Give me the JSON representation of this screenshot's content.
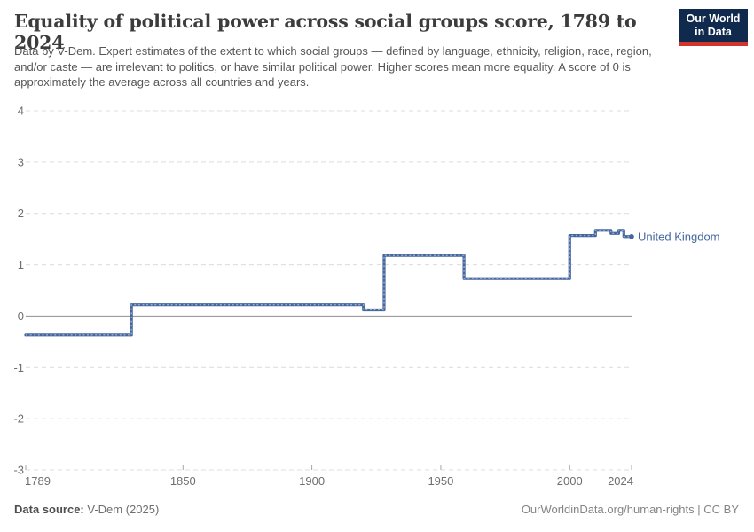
{
  "header": {
    "title": "Equality of political power across social groups score, 1789 to 2024",
    "subtitle": "Data by V-Dem. Expert estimates of the extent to which social groups — defined by language, ethnicity, religion, race, region, and/or caste — are irrelevant to politics, or have similar political power. Higher scores mean more equality. A score of 0 is approximately the average across all countries and years.",
    "logo": {
      "line1": "Our World",
      "line2": "in Data",
      "bg_color": "#102A4E",
      "accent_color": "#D0342C"
    }
  },
  "footer": {
    "source_label": "Data source:",
    "source_value": " V-Dem (2025)",
    "link": "OurWorldinData.org/human-rights",
    "separator": " | ",
    "license": "CC BY"
  },
  "colors": {
    "grid": "#dcdcdc",
    "zero_line": "#8f8f8f",
    "tick_text": "#6e6e6e",
    "tick_mark": "#a5a5a5"
  },
  "chart_data": {
    "type": "line",
    "step": "after",
    "title": "Equality of political power across social groups score, 1789 to 2024",
    "xlabel": "",
    "ylabel": "",
    "x": {
      "min": 1789,
      "max": 2024,
      "ticks": [
        1789,
        1850,
        1900,
        1950,
        2000,
        2024
      ]
    },
    "y": {
      "min": -3,
      "max": 4,
      "ticks": [
        4,
        3,
        2,
        1,
        0,
        -1,
        -2,
        -3
      ],
      "zero_line": 0
    },
    "grid": true,
    "legend_position": "end-of-line",
    "series": [
      {
        "name": "United Kingdom",
        "color": "#44669F",
        "points": [
          [
            1789,
            -0.37
          ],
          [
            1830,
            0.22
          ],
          [
            1920,
            0.12
          ],
          [
            1928,
            1.18
          ],
          [
            1959,
            0.73
          ],
          [
            2000,
            1.57
          ],
          [
            2010,
            1.67
          ],
          [
            2016,
            1.61
          ],
          [
            2019,
            1.67
          ],
          [
            2021,
            1.55
          ],
          [
            2024,
            1.55
          ]
        ]
      }
    ]
  }
}
